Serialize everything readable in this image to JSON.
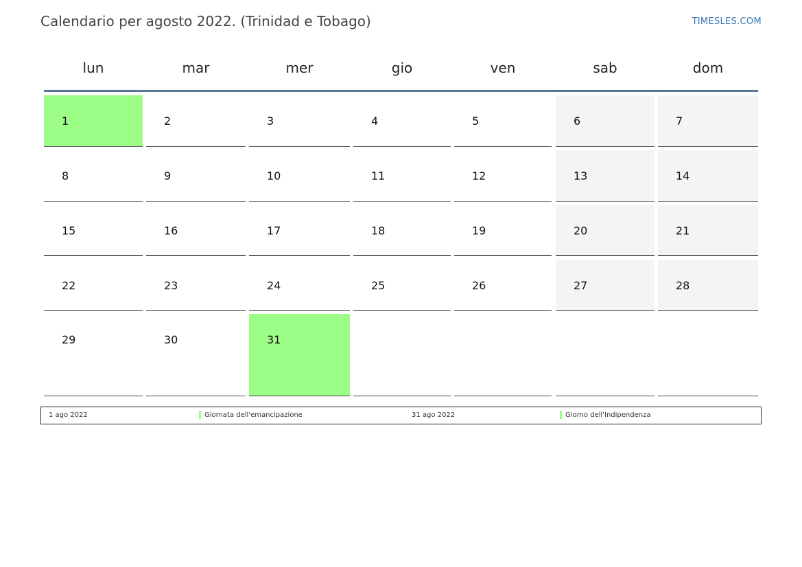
{
  "header": {
    "title": "Calendario per agosto 2022. (Trinidad e Tobago)",
    "brand": "TIMESLES.COM"
  },
  "colors": {
    "holiday": "#9cfe87",
    "weekend": "#f4f4f4",
    "header_rule": "#5b7497",
    "brand": "#3b78b4"
  },
  "weekdays": [
    "lun",
    "mar",
    "mer",
    "gio",
    "ven",
    "sab",
    "dom"
  ],
  "weeks": [
    [
      {
        "day": "1",
        "type": "holiday"
      },
      {
        "day": "2",
        "type": "normal"
      },
      {
        "day": "3",
        "type": "normal"
      },
      {
        "day": "4",
        "type": "normal"
      },
      {
        "day": "5",
        "type": "normal"
      },
      {
        "day": "6",
        "type": "weekend"
      },
      {
        "day": "7",
        "type": "weekend"
      }
    ],
    [
      {
        "day": "8",
        "type": "normal"
      },
      {
        "day": "9",
        "type": "normal"
      },
      {
        "day": "10",
        "type": "normal"
      },
      {
        "day": "11",
        "type": "normal"
      },
      {
        "day": "12",
        "type": "normal"
      },
      {
        "day": "13",
        "type": "weekend"
      },
      {
        "day": "14",
        "type": "weekend"
      }
    ],
    [
      {
        "day": "15",
        "type": "normal"
      },
      {
        "day": "16",
        "type": "normal"
      },
      {
        "day": "17",
        "type": "normal"
      },
      {
        "day": "18",
        "type": "normal"
      },
      {
        "day": "19",
        "type": "normal"
      },
      {
        "day": "20",
        "type": "weekend"
      },
      {
        "day": "21",
        "type": "weekend"
      }
    ],
    [
      {
        "day": "22",
        "type": "normal"
      },
      {
        "day": "23",
        "type": "normal"
      },
      {
        "day": "24",
        "type": "normal"
      },
      {
        "day": "25",
        "type": "normal"
      },
      {
        "day": "26",
        "type": "normal"
      },
      {
        "day": "27",
        "type": "weekend"
      },
      {
        "day": "28",
        "type": "weekend"
      }
    ],
    [
      {
        "day": "29",
        "type": "normal"
      },
      {
        "day": "30",
        "type": "normal"
      },
      {
        "day": "31",
        "type": "holiday"
      },
      {
        "day": "",
        "type": "empty"
      },
      {
        "day": "",
        "type": "empty"
      },
      {
        "day": "",
        "type": "empty"
      },
      {
        "day": "",
        "type": "empty"
      }
    ]
  ],
  "legend": [
    {
      "date": "1 ago 2022",
      "name": "Giornata dell'emancipazione"
    },
    {
      "date": "31 ago 2022",
      "name": "Giorno dell'Indipendenza"
    }
  ]
}
